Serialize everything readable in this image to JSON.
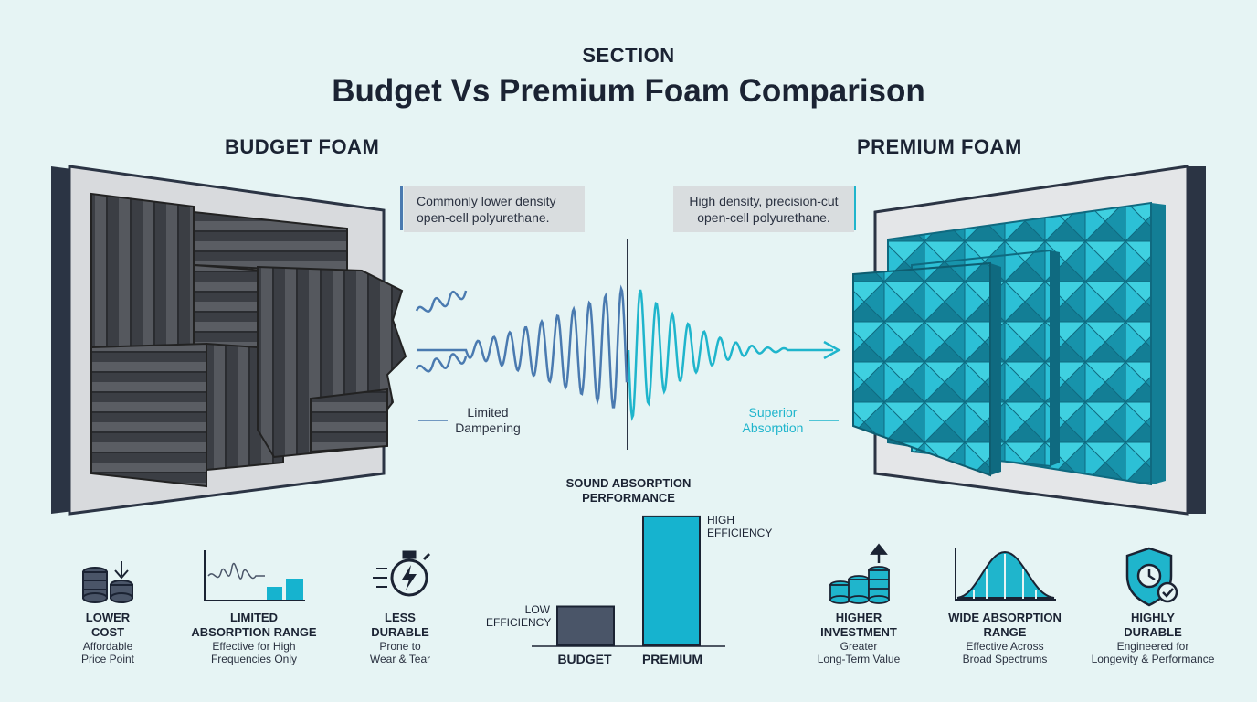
{
  "header": {
    "section_label": "SECTION",
    "title": "Budget Vs Premium Foam Comparison"
  },
  "budget": {
    "heading": "BUDGET FOAM",
    "callout_line1": "Commonly lower density",
    "callout_line2": "open-cell polyurethane.",
    "wave_label_line1": "Limited",
    "wave_label_line2": "Dampening"
  },
  "premium": {
    "heading": "PREMIUM FOAM",
    "callout_line1": "High density, precision-cut",
    "callout_line2": "open-cell polyurethane.",
    "wave_label_line1": "Superior",
    "wave_label_line2": "Absorption"
  },
  "chart_data": {
    "type": "bar",
    "title": "SOUND ABSORPTION PERFORMANCE",
    "title_line1": "SOUND ABSORPTION",
    "title_line2": "PERFORMANCE",
    "categories": [
      "BUDGET",
      "PREMIUM"
    ],
    "values": [
      0.25,
      0.83
    ],
    "ylim": [
      0,
      1
    ],
    "bar_labels": [
      {
        "line1": "LOW",
        "line2": "EFFICIENCY"
      },
      {
        "line1": "HIGH",
        "line2": "EFFICIENCY"
      }
    ],
    "colors": [
      "#4a5568",
      "#16b3cf"
    ]
  },
  "features": {
    "budget": [
      {
        "icon": "coins-down-icon",
        "title1": "LOWER",
        "title2": "COST",
        "desc1": "Affordable",
        "desc2": "Price Point"
      },
      {
        "icon": "limited-range-graph-icon",
        "title1": "LIMITED",
        "title2": "ABSORPTION RANGE",
        "desc1": "Effective for High",
        "desc2": "Frequencies Only"
      },
      {
        "icon": "stopwatch-icon",
        "title1": "LESS",
        "title2": "DURABLE",
        "desc1": "Prone to",
        "desc2": "Wear & Tear"
      }
    ],
    "premium": [
      {
        "icon": "coins-up-icon",
        "title1": "HIGHER",
        "title2": "INVESTMENT",
        "desc1": "Greater",
        "desc2": "Long-Term Value"
      },
      {
        "icon": "bell-curve-icon",
        "title1": "WIDE ABSORPTION",
        "title2": "RANGE",
        "desc1": "Effective Across",
        "desc2": "Broad Spectrums"
      },
      {
        "icon": "shield-clock-icon",
        "title1": "HIGHLY",
        "title2": "DURABLE",
        "desc1": "Engineered for",
        "desc2": "Longevity & Performance"
      }
    ]
  },
  "colors": {
    "background": "#e6f4f4",
    "dark_text": "#1b2333",
    "budget_foam": "#3a3d42",
    "premium_foam": "#1ec0d4",
    "budget_wave": "#4a7ab0",
    "premium_wave": "#1fb5cc"
  }
}
